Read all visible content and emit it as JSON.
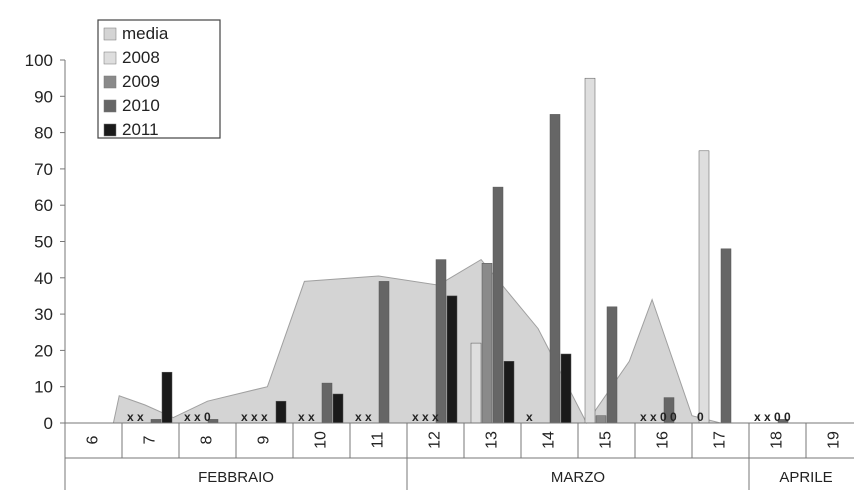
{
  "chart_data": {
    "type": "bar",
    "title": "",
    "xlabel": "",
    "ylabel": "",
    "ylim": [
      0,
      100
    ],
    "yticks": [
      0,
      10,
      20,
      30,
      40,
      50,
      60,
      70,
      80,
      90,
      100
    ],
    "grid": false,
    "legend_position": "top-left",
    "categories": [
      "6",
      "7",
      "8",
      "9",
      "10",
      "11",
      "12",
      "13",
      "14",
      "15",
      "16",
      "17",
      "18",
      "19"
    ],
    "months": [
      {
        "label": "FEBBRAIO",
        "from": 0,
        "to": 5
      },
      {
        "label": "MARZO",
        "from": 6,
        "to": 11
      },
      {
        "label": "APRILE",
        "from": 12,
        "to": 13
      }
    ],
    "area_series": {
      "name": "media",
      "color": "#d4d4d4",
      "points": [
        [
          0.85,
          0
        ],
        [
          0.95,
          7.5
        ],
        [
          1.4,
          5
        ],
        [
          1.9,
          1.5
        ],
        [
          2.5,
          6
        ],
        [
          3.55,
          10
        ],
        [
          4.2,
          39
        ],
        [
          5.5,
          40.5
        ],
        [
          6.55,
          38
        ],
        [
          7.3,
          45
        ],
        [
          8.3,
          26
        ],
        [
          9.15,
          0
        ],
        [
          9.9,
          17
        ],
        [
          10.3,
          34
        ],
        [
          11.0,
          2
        ],
        [
          11.5,
          0
        ]
      ]
    },
    "series": [
      {
        "name": "2008",
        "color": "#dedede",
        "values": [
          null,
          null,
          null,
          null,
          null,
          null,
          null,
          22,
          null,
          95,
          null,
          75,
          null,
          null
        ]
      },
      {
        "name": "2009",
        "color": "#8a8a8a",
        "values": [
          null,
          null,
          null,
          null,
          null,
          null,
          null,
          44,
          null,
          2,
          null,
          null,
          null,
          null
        ]
      },
      {
        "name": "2010",
        "color": "#666666",
        "values": [
          null,
          1,
          1,
          null,
          11,
          39,
          45,
          65,
          85,
          32,
          7,
          48,
          1,
          null
        ]
      },
      {
        "name": "2011",
        "color": "#1a1a1a",
        "values": [
          null,
          14,
          null,
          6,
          8,
          null,
          35,
          17,
          19,
          null,
          null,
          null,
          null,
          null
        ]
      }
    ],
    "markers": [
      {
        "cat": 1,
        "texts": [
          "x",
          "x"
        ]
      },
      {
        "cat": 2,
        "texts": [
          "x",
          "x",
          "0"
        ]
      },
      {
        "cat": 3,
        "texts": [
          "x",
          "x",
          "x"
        ]
      },
      {
        "cat": 4,
        "texts": [
          "x",
          "x"
        ]
      },
      {
        "cat": 5,
        "texts": [
          "x",
          "x"
        ]
      },
      {
        "cat": 6,
        "texts": [
          "x",
          "x",
          "x"
        ]
      },
      {
        "cat": 8,
        "texts": [
          "x"
        ]
      },
      {
        "cat": 10,
        "texts": [
          "x",
          "x",
          "0",
          "0"
        ]
      },
      {
        "cat": 11,
        "texts": [
          "0"
        ]
      },
      {
        "cat": 12,
        "texts": [
          "x",
          "x",
          "0",
          "0"
        ]
      }
    ]
  }
}
